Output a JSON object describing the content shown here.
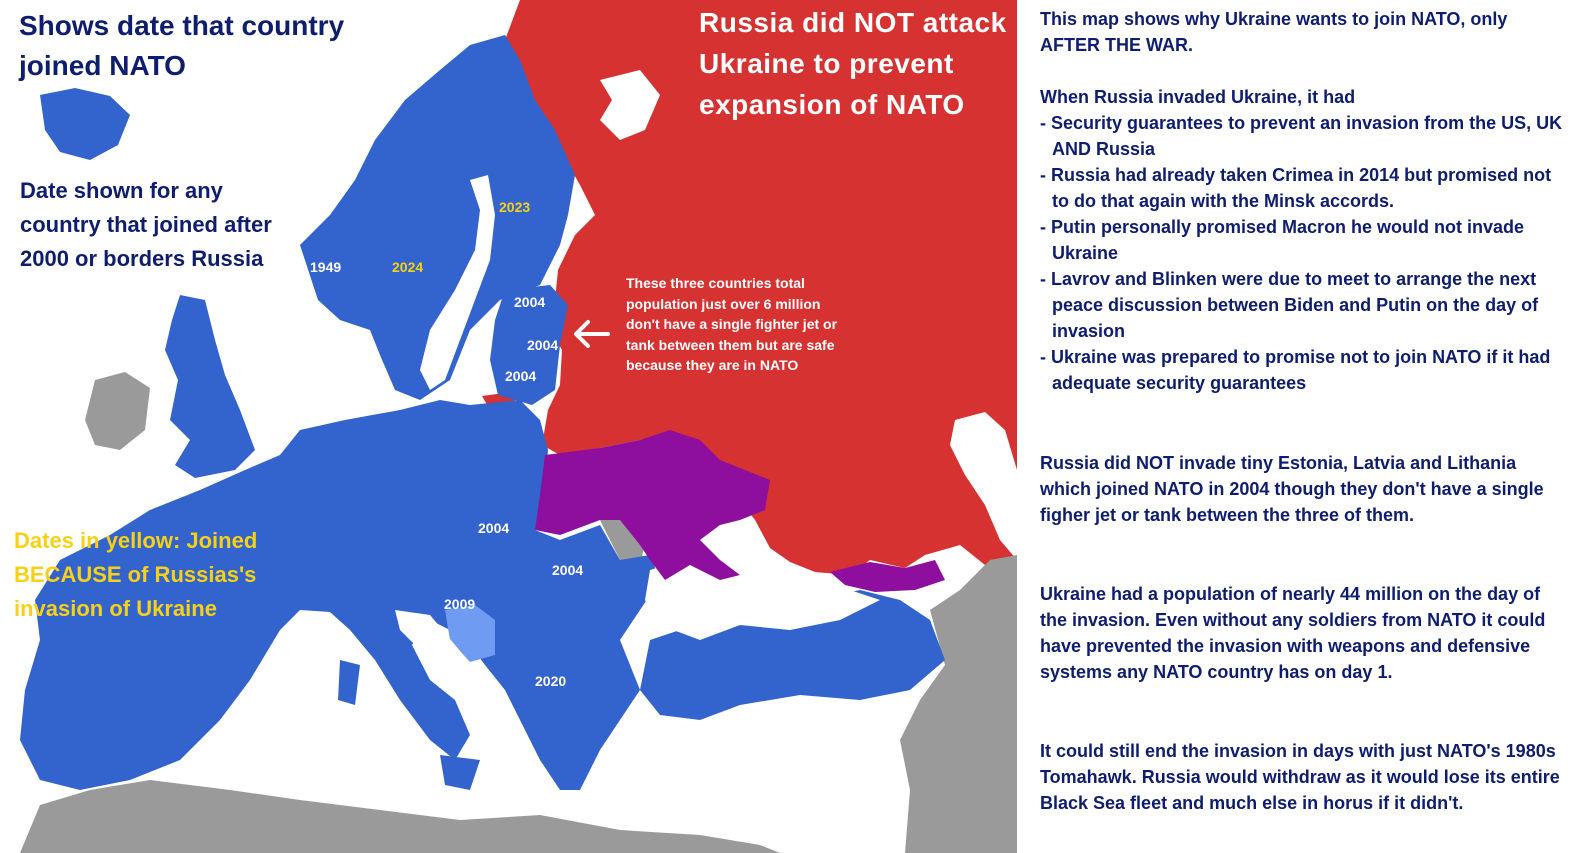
{
  "title": "Shows date that country joined NATO",
  "note_dates": "Date shown for any country that joined after 2000 or borders Russia",
  "note_yellow": "Dates in yellow: Joined BECAUSE of Russias's invasion of Ukraine",
  "russia_claim": "Russia did NOT attack Ukraine to prevent expansion of NATO",
  "baltic_note": "These three countries total population just over 6 million don't have a single fighter jet or tank between them but are safe because they are in NATO",
  "arrow_icon": "left-arrow-icon",
  "colors": {
    "nato": "#3363cc",
    "russia": "#d63232",
    "ukraine_georgia": "#8e0e9d",
    "non_nato": "#9a9a9a",
    "bosnia": "#6f9bf2",
    "sea": "#ffffff",
    "text_navy": "#0f1d6e",
    "text_yellow": "#f7d117"
  },
  "map_labels": {
    "norway": "1949",
    "sweden": "2024",
    "finland": "2023",
    "estonia": "2004",
    "latvia": "2004",
    "lithuania": "2004",
    "slovakia": "2004",
    "romania": "2004",
    "croatia": "2009",
    "north_macedonia": "2020"
  },
  "panel": {
    "intro": "This map shows why Ukraine wants to  join NATO, only AFTER THE WAR.",
    "invasion_heading": "When Russia invaded Ukraine, it had",
    "bullets": [
      "- Security guarantees to prevent an  invasion from the US, UK AND Russia",
      "- Russia had already taken Crimea in  2014 but promised not to do that again  with the Minsk accords.",
      "- Putin personally promised Macron he  would not invade Ukraine",
      "- Lavrov and Blinken were due to meet to arrange the next peace  discussion  between Biden and Putin  on the day of  invasion",
      "- Ukraine was prepared to promise not to join NATO if it had adequate security  guarantees"
    ],
    "baltics_paragraph": "Russia did NOT invade tiny Estonia, Latvia and Lithania which joined NATO in 2004 though they don't have a single figher jet or tank between the three of them.",
    "population_paragraph": "Ukraine had a population of nearly 44 million on the day of the invasion. Even without any soldiers from NATO it could have prevented the invasion with weapons and defensive systems any NATO country has on day 1.",
    "tomahawk_paragraph": "It could still end the invasion in days with just NATO's 1980s Tomahawk. Russia would withdraw as it would lose its entire Black Sea fleet and much else in horus if it didn't."
  }
}
